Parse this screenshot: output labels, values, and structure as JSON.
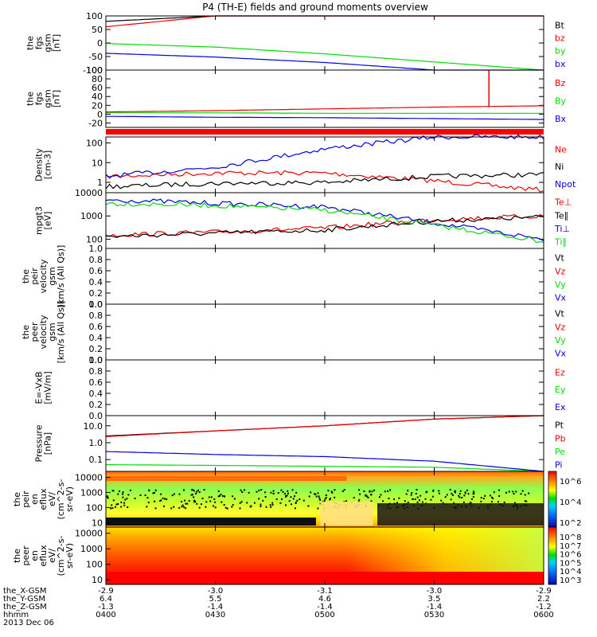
{
  "title": "P4 (TH-E) fields and ground moments overview",
  "date_label": "2013 Dec 06",
  "time_axis": {
    "row_labels": [
      "the_X-GSM",
      "the_Y-GSM",
      "the_Z-GSM",
      "hhmm"
    ],
    "tick_rows": [
      [
        "-2.9",
        "-3.0",
        "-3.1",
        "-3.0",
        "-2.9"
      ],
      [
        "6.4",
        "5.5",
        "4.6",
        "3.5",
        "2.2"
      ],
      [
        "-1.3",
        "-1.4",
        "-1.4",
        "-1.4",
        "-1.2"
      ],
      [
        "0400",
        "0430",
        "0500",
        "0530",
        "0600"
      ]
    ]
  },
  "colors": {
    "black": "#000000",
    "red": "#ee0000",
    "green": "#00dd00",
    "blue": "#0000dd"
  },
  "chart_data": [
    {
      "type": "line",
      "ylabel": [
        "the",
        "fgs",
        "gsm",
        "[nT]"
      ],
      "yticks": [
        "100",
        "50",
        "0",
        "-50",
        "-100"
      ],
      "ylim": [
        -100,
        100
      ],
      "x": [
        "0400",
        "0430",
        "0500",
        "0530",
        "0600"
      ],
      "legend": [
        {
          "name": "Bt",
          "color": "#000000"
        },
        {
          "name": "bz",
          "color": "#ee0000"
        },
        {
          "name": "by",
          "color": "#00dd00"
        },
        {
          "name": "bx",
          "color": "#0000dd"
        }
      ],
      "series": [
        {
          "name": "Bt",
          "values": [
            80,
            100,
            100,
            100,
            100
          ]
        },
        {
          "name": "bz",
          "values": [
            60,
            100,
            100,
            100,
            100
          ]
        },
        {
          "name": "by",
          "values": [
            -2,
            -15,
            -40,
            -70,
            -100
          ]
        },
        {
          "name": "bx",
          "values": [
            -38,
            -52,
            -72,
            -100,
            -100
          ]
        }
      ]
    },
    {
      "type": "line",
      "ylabel": [
        "the",
        "fgs",
        "gsm",
        "[nT]"
      ],
      "yticks": [
        "100",
        "80",
        "60",
        "40",
        "20",
        "0",
        "-20"
      ],
      "ylim": [
        -30,
        100
      ],
      "legend": [
        {
          "name": "Bz",
          "color": "#ee0000"
        },
        {
          "name": "By",
          "color": "#00dd00"
        },
        {
          "name": "Bx",
          "color": "#0000dd"
        }
      ],
      "series": [
        {
          "name": "Bz",
          "values": [
            5,
            8,
            12,
            16,
            19
          ]
        },
        {
          "name": "By",
          "values": [
            3,
            3,
            2,
            2,
            2
          ]
        },
        {
          "name": "Bx",
          "values": [
            -5,
            -7,
            -8,
            -10,
            -12
          ]
        }
      ],
      "spike": {
        "time": "0545",
        "value": 100
      }
    },
    {
      "type": "line",
      "ylabel": [
        "Density",
        "[cm-3]"
      ],
      "yticks": [
        "100",
        "10",
        "1"
      ],
      "log": true,
      "ylim": [
        0.3,
        200
      ],
      "legend": [
        {
          "name": "Ne",
          "color": "#ee0000"
        },
        {
          "name": "Ni",
          "color": "#000000"
        },
        {
          "name": "Npot",
          "color": "#0000dd"
        }
      ],
      "series": [
        {
          "name": "Ne",
          "values": [
            2,
            3,
            3,
            1.2,
            0.4
          ]
        },
        {
          "name": "Ni",
          "values": [
            0.6,
            0.9,
            1.0,
            2,
            2.5
          ]
        },
        {
          "name": "Npot",
          "values": [
            2,
            6,
            50,
            200,
            200
          ]
        }
      ]
    },
    {
      "type": "line",
      "ylabel": [
        "mpgt3",
        "[eV]"
      ],
      "yticks": [
        "10000",
        "1000",
        "100"
      ],
      "log": true,
      "ylim": [
        40,
        10000
      ],
      "legend": [
        {
          "name": "Te⊥",
          "color": "#ee0000"
        },
        {
          "name": "Te∥",
          "color": "#000000"
        },
        {
          "name": "Ti⊥",
          "color": "#0000dd"
        },
        {
          "name": "Ti∥",
          "color": "#00dd00"
        }
      ],
      "series": [
        {
          "name": "Te⊥",
          "values": [
            150,
            200,
            300,
            700,
            1000
          ]
        },
        {
          "name": "Te∥",
          "values": [
            130,
            180,
            250,
            600,
            900
          ]
        },
        {
          "name": "Ti⊥",
          "values": [
            5000,
            3500,
            2500,
            500,
            100
          ]
        },
        {
          "name": "Ti∥",
          "values": [
            3500,
            2800,
            1800,
            400,
            80
          ]
        }
      ]
    },
    {
      "type": "line",
      "ylabel": [
        "the",
        "peir",
        "velocity",
        "gsm",
        "[km/s (All Qs)]"
      ],
      "yticks": [
        "1.0",
        "0.8",
        "0.6",
        "0.4",
        "0.2",
        "0.0"
      ],
      "ylim": [
        0,
        1
      ],
      "legend": [
        {
          "name": "Vt",
          "color": "#000000"
        },
        {
          "name": "Vz",
          "color": "#ee0000"
        },
        {
          "name": "Vy",
          "color": "#00dd00"
        },
        {
          "name": "Vx",
          "color": "#0000dd"
        }
      ],
      "series": []
    },
    {
      "type": "line",
      "ylabel": [
        "the",
        "peer",
        "velocity",
        "gsm",
        "[km/s (All Qs)]"
      ],
      "yticks": [
        "1.0",
        "0.8",
        "0.6",
        "0.4",
        "0.2",
        "0.0"
      ],
      "ylim": [
        0,
        1
      ],
      "legend": [
        {
          "name": "Vt",
          "color": "#000000"
        },
        {
          "name": "Vz",
          "color": "#ee0000"
        },
        {
          "name": "Vy",
          "color": "#00dd00"
        },
        {
          "name": "Vx",
          "color": "#0000dd"
        }
      ],
      "series": []
    },
    {
      "type": "line",
      "ylabel": [
        "E=-VxB",
        "[mV/m]"
      ],
      "yticks": [
        "1.0",
        "0.8",
        "0.6",
        "0.4",
        "0.2",
        "0.0"
      ],
      "ylim": [
        0,
        1
      ],
      "legend": [
        {
          "name": "Ez",
          "color": "#ee0000"
        },
        {
          "name": "Ey",
          "color": "#00dd00"
        },
        {
          "name": "Ex",
          "color": "#0000dd"
        }
      ],
      "series": []
    },
    {
      "type": "line",
      "ylabel": [
        "Pressure",
        "[nPa]"
      ],
      "yticks": [
        "10.0",
        "1.0",
        "0.1"
      ],
      "log": true,
      "ylim": [
        0.02,
        40
      ],
      "legend": [
        {
          "name": "Pt",
          "color": "#000000"
        },
        {
          "name": "Pb",
          "color": "#ee0000"
        },
        {
          "name": "Pe",
          "color": "#00dd00"
        },
        {
          "name": "Pi",
          "color": "#0000dd"
        }
      ],
      "series": [
        {
          "name": "Pt",
          "values": [
            2.5,
            5,
            10,
            25,
            40
          ]
        },
        {
          "name": "Pb",
          "values": [
            2.3,
            5,
            10,
            25,
            40
          ]
        },
        {
          "name": "Pe",
          "values": [
            0.05,
            0.045,
            0.04,
            0.035,
            0.02
          ]
        },
        {
          "name": "Pi",
          "values": [
            0.3,
            0.2,
            0.15,
            0.08,
            0.02
          ]
        }
      ]
    },
    {
      "type": "heatmap",
      "ylabel": [
        "the",
        "peir",
        "en",
        "eflux",
        "eV/",
        "(cm^2-s-",
        "sr-eV)"
      ],
      "yticks": [
        "10000",
        "1000",
        "100",
        "10"
      ],
      "log": true,
      "ylim": [
        5,
        25000
      ],
      "colorbar": {
        "labels": [
          "10^6",
          "10^4",
          "10^2"
        ]
      }
    },
    {
      "type": "heatmap",
      "ylabel": [
        "the",
        "peer",
        "en",
        "eflux",
        "eV/",
        "(cm^2-s-",
        "sr-eV)"
      ],
      "yticks": [
        "10000",
        "1000",
        "100",
        "10"
      ],
      "log": true,
      "ylim": [
        5,
        25000
      ],
      "colorbar": {
        "labels": [
          "10^8",
          "10^7",
          "10^6",
          "10^5",
          "10^4",
          "10^3"
        ]
      }
    }
  ]
}
